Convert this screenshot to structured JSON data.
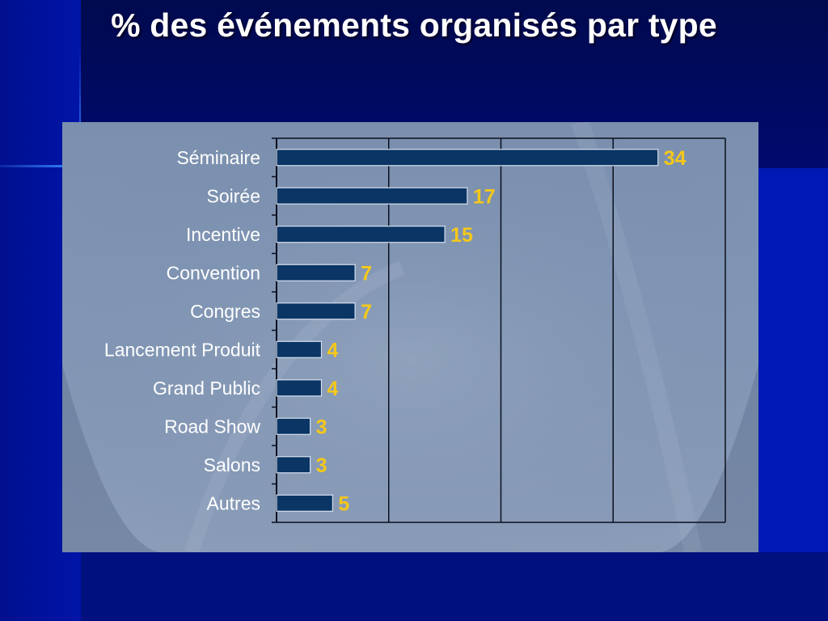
{
  "slide": {
    "title": "% des événements organisés par type"
  },
  "colors": {
    "background": "#00006b",
    "panel": "#8096b4",
    "bar_fill": "#0a3565",
    "value_label": "#f5c81a",
    "category_label": "#ffffff",
    "title": "#ffffff"
  },
  "chart_data": {
    "type": "bar",
    "orientation": "horizontal",
    "categories": [
      "Séminaire",
      "Soirée",
      "Incentive",
      "Convention",
      "Congres",
      "Lancement Produit",
      "Grand Public",
      "Road Show",
      "Salons",
      "Autres"
    ],
    "values": [
      34,
      17,
      15,
      7,
      7,
      4,
      4,
      3,
      3,
      5
    ],
    "value_labels": [
      "34",
      "17",
      "15",
      "7",
      "7",
      "4",
      "4",
      "3",
      "3",
      "5"
    ],
    "xlim": [
      0,
      40
    ],
    "vertical_gridlines": [
      10,
      20,
      30
    ],
    "grid": true,
    "legend": "none"
  }
}
